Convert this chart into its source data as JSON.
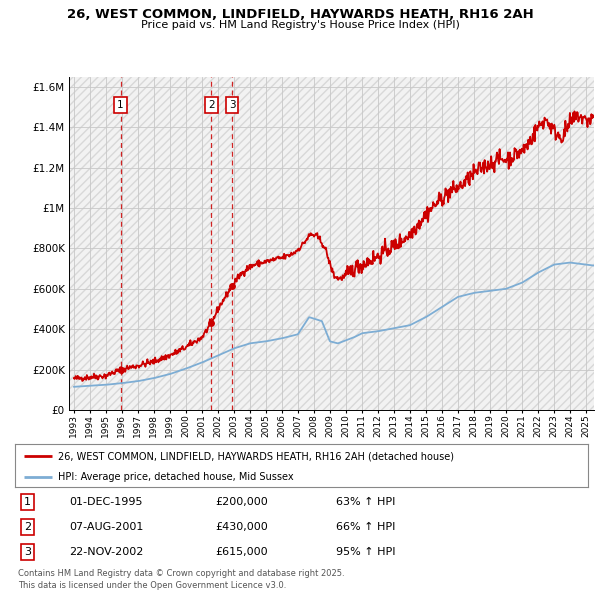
{
  "title1": "26, WEST COMMON, LINDFIELD, HAYWARDS HEATH, RH16 2AH",
  "title2": "Price paid vs. HM Land Registry's House Price Index (HPI)",
  "red_label": "26, WEST COMMON, LINDFIELD, HAYWARDS HEATH, RH16 2AH (detached house)",
  "blue_label": "HPI: Average price, detached house, Mid Sussex",
  "transactions": [
    {
      "num": 1,
      "date": "01-DEC-1995",
      "price": "£200,000",
      "hpi": "63% ↑ HPI",
      "year": 1995.92,
      "value": 200000
    },
    {
      "num": 2,
      "date": "07-AUG-2001",
      "price": "£430,000",
      "hpi": "66% ↑ HPI",
      "year": 2001.6,
      "value": 430000
    },
    {
      "num": 3,
      "date": "22-NOV-2002",
      "price": "£615,000",
      "hpi": "95% ↑ HPI",
      "year": 2002.89,
      "value": 615000
    }
  ],
  "footer": "Contains HM Land Registry data © Crown copyright and database right 2025.\nThis data is licensed under the Open Government Licence v3.0.",
  "ylim": [
    0,
    1650000
  ],
  "xlim_start": 1992.7,
  "xlim_end": 2025.5,
  "background_color": "#ffffff",
  "grid_color": "#c8c8c8",
  "red_color": "#cc0000",
  "blue_color": "#7dadd4"
}
